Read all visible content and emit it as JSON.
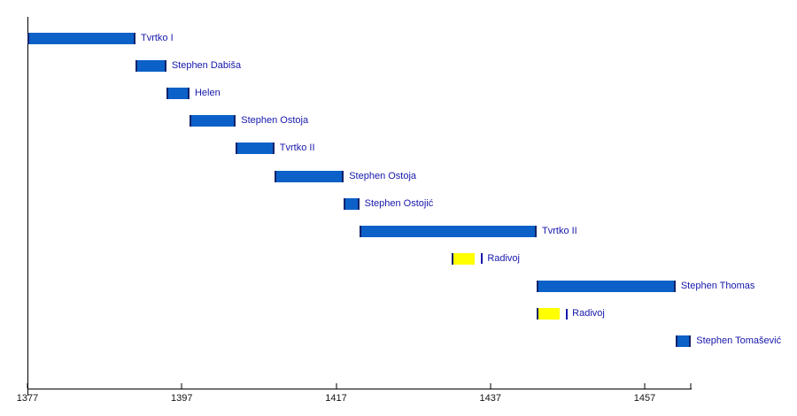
{
  "chart_data": {
    "type": "bar",
    "subtype": "horizontal-timeline-gantt",
    "title": "",
    "xlabel": "",
    "ylabel": "",
    "xlim": [
      1377,
      1463
    ],
    "x_ticks": [
      1377,
      1397,
      1417,
      1437,
      1457
    ],
    "axis_end_tick": 1463,
    "grid": false,
    "legend": false,
    "reigns": [
      {
        "label": "Tvrtko I",
        "start": 1377,
        "end": 1391,
        "color": "blue",
        "pretender": false
      },
      {
        "label": "Stephen Dabiša",
        "start": 1391,
        "end": 1395,
        "color": "blue",
        "pretender": false
      },
      {
        "label": "Helen",
        "start": 1395,
        "end": 1398,
        "color": "blue",
        "pretender": false
      },
      {
        "label": "Stephen Ostoja",
        "start": 1398,
        "end": 1404,
        "color": "blue",
        "pretender": false
      },
      {
        "label": "Tvrtko II",
        "start": 1404,
        "end": 1409,
        "color": "blue",
        "pretender": false
      },
      {
        "label": "Stephen Ostoja",
        "start": 1409,
        "end": 1418,
        "color": "blue",
        "pretender": false
      },
      {
        "label": "Stephen Ostojić",
        "start": 1418,
        "end": 1420,
        "color": "blue",
        "pretender": false
      },
      {
        "label": "Tvrtko II",
        "start": 1420,
        "end": 1443,
        "color": "blue",
        "pretender": false
      },
      {
        "label": "Radivoj",
        "start": 1432,
        "end": 1435,
        "color": "yellow",
        "pretender": true
      },
      {
        "label": "Stephen Thomas",
        "start": 1443,
        "end": 1461,
        "color": "blue",
        "pretender": false
      },
      {
        "label": "Radivoj",
        "start": 1443,
        "end": 1446,
        "color": "yellow",
        "pretender": true
      },
      {
        "label": "Stephen Tomašević",
        "start": 1461,
        "end": 1463,
        "color": "blue",
        "pretender": false
      }
    ]
  },
  "colors": {
    "bar_blue": "#0b61c8",
    "bar_yellow": "#ffff00",
    "bar_edge": "#12236b",
    "label_text": "#1717ac",
    "axis": "#000000",
    "tick_label": "#141414",
    "background": "#ffffff"
  }
}
